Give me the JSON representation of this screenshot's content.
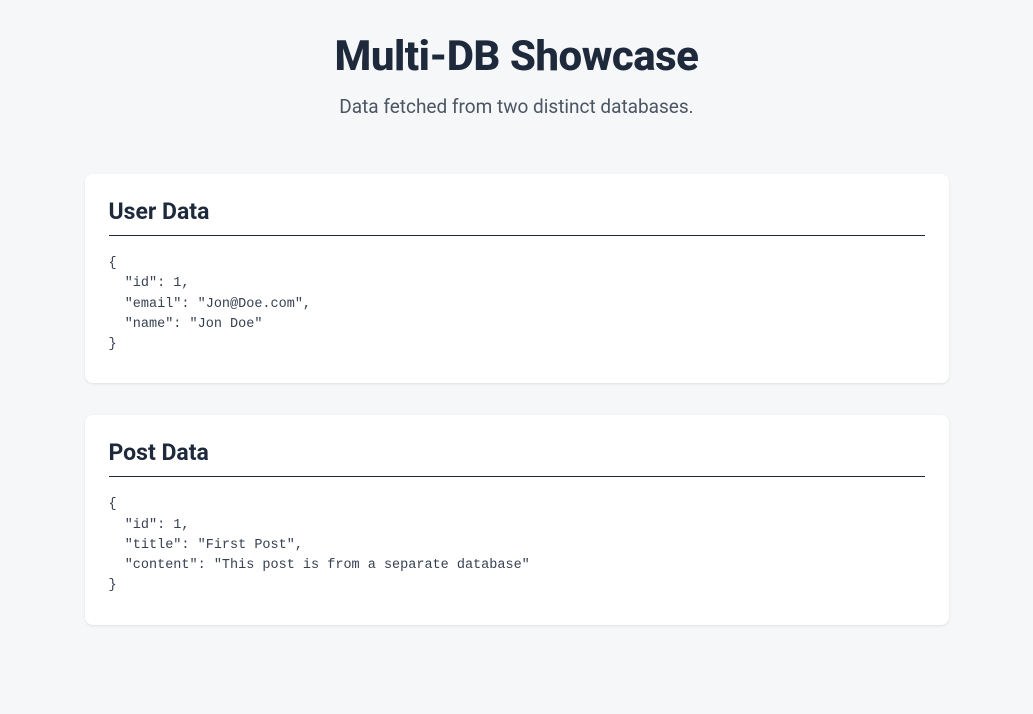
{
  "header": {
    "title": "Multi-DB Showcase",
    "subtitle": "Data fetched from two distinct databases."
  },
  "cards": {
    "user": {
      "title": "User Data",
      "json": "{\n  \"id\": 1,\n  \"email\": \"Jon@Doe.com\",\n  \"name\": \"Jon Doe\"\n}"
    },
    "post": {
      "title": "Post Data",
      "json": "{\n  \"id\": 1,\n  \"title\": \"First Post\",\n  \"content\": \"This post is from a separate database\"\n}"
    }
  },
  "colors": {
    "page_bg": "#f6f7f9",
    "card_bg": "#ffffff",
    "heading_text": "#1e2a3b",
    "subtitle_text": "#4b5563",
    "code_text": "#374151",
    "divider": "#1e2a3b"
  }
}
